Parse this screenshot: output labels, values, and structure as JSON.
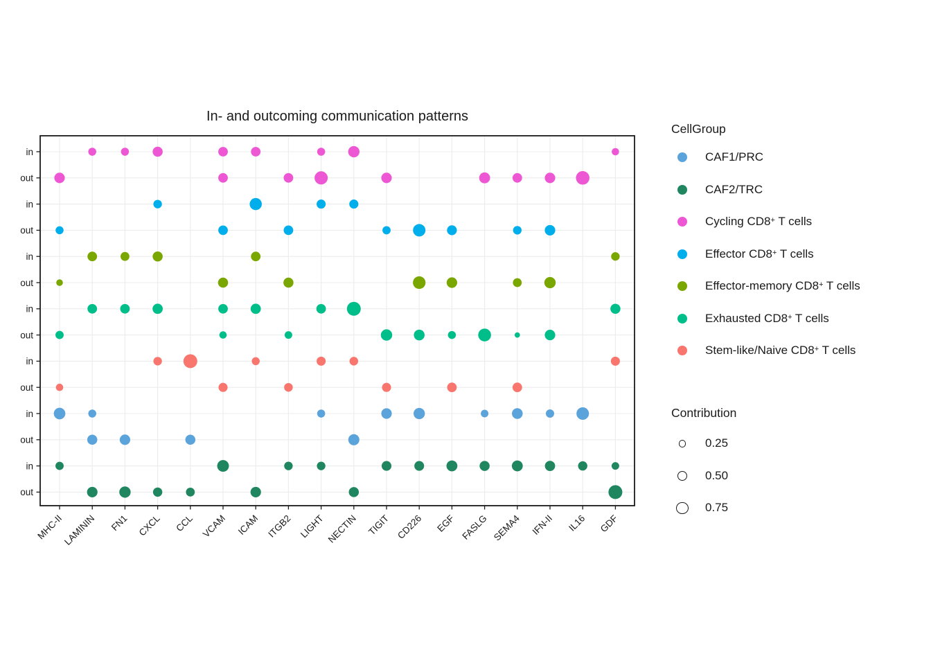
{
  "title": "In- and outcoming communication patterns",
  "legend": {
    "cellgroup_title": "CellGroup",
    "groups": [
      {
        "name": "CAF1/PRC",
        "color": "#5BA3DB",
        "label": {
          "pre": "CAF1/PRC",
          "sup": "",
          "post": ""
        }
      },
      {
        "name": "CAF2/TRC",
        "color": "#1F8660",
        "label": {
          "pre": "CAF2/TRC",
          "sup": "",
          "post": ""
        }
      },
      {
        "name": "Cycling CD8+ T cells",
        "color": "#EE57D4",
        "label": {
          "pre": "Cycling CD8",
          "sup": "+",
          "post": " T cells"
        }
      },
      {
        "name": "Effector CD8+ T cells",
        "color": "#00AEEC",
        "label": {
          "pre": "Effector CD8",
          "sup": "+",
          "post": " T cells"
        }
      },
      {
        "name": "Effector-memory CD8+ T cells",
        "color": "#7AA600",
        "label": {
          "pre": "Effector-memory CD8",
          "sup": "+",
          "post": " T cells"
        }
      },
      {
        "name": "Exhausted CD8+ T cells",
        "color": "#00BE89",
        "label": {
          "pre": "Exhausted CD8",
          "sup": "+",
          "post": " T cells"
        }
      },
      {
        "name": "Stem-like/Naive CD8+ T cells",
        "color": "#F8766D",
        "label": {
          "pre": "Stem-like/Naive CD8",
          "sup": "+",
          "post": " T cells"
        }
      }
    ],
    "contribution_title": "Contribution",
    "contribution_items": [
      {
        "value": 0.25,
        "label": "0.25"
      },
      {
        "value": 0.5,
        "label": "0.50"
      },
      {
        "value": 0.75,
        "label": "0.75"
      }
    ]
  },
  "chart_data": {
    "type": "scatter",
    "subtype": "dot-plot",
    "title": "In- and outcoming communication patterns",
    "x_categories": [
      "MHC-II",
      "LAMININ",
      "FN1",
      "CXCL",
      "CCL",
      "VCAM",
      "ICAM",
      "ITGB2",
      "LIGHT",
      "NECTIN",
      "TIGIT",
      "CD226",
      "EGF",
      "FASLG",
      "SEMA4",
      "IFN-II",
      "IL16",
      "GDF"
    ],
    "y_tick_labels": [
      "in",
      "out"
    ],
    "size_variable": "Contribution",
    "size_legend_values": [
      0.25,
      0.5,
      0.75
    ],
    "grid": true,
    "legend_position": "right",
    "rows": [
      {
        "group": "Cycling CD8+ T cells",
        "direction": "in",
        "dots": {
          "LAMININ": 0.3,
          "FN1": 0.3,
          "CXCL": 0.5,
          "VCAM": 0.45,
          "ICAM": 0.45,
          "LIGHT": 0.3,
          "NECTIN": 0.65,
          "GDF": 0.25
        }
      },
      {
        "group": "Cycling CD8+ T cells",
        "direction": "out",
        "dots": {
          "MHC-II": 0.55,
          "VCAM": 0.45,
          "ITGB2": 0.45,
          "LIGHT": 0.9,
          "TIGIT": 0.55,
          "FASLG": 0.6,
          "SEMA4": 0.45,
          "IFN-II": 0.55,
          "IL16": 0.95
        }
      },
      {
        "group": "Effector CD8+ T cells",
        "direction": "in",
        "dots": {
          "CXCL": 0.35,
          "ICAM": 0.75,
          "LIGHT": 0.4,
          "NECTIN": 0.4
        }
      },
      {
        "group": "Effector CD8+ T cells",
        "direction": "out",
        "dots": {
          "MHC-II": 0.3,
          "VCAM": 0.45,
          "ITGB2": 0.45,
          "TIGIT": 0.32,
          "CD226": 0.8,
          "EGF": 0.48,
          "SEMA4": 0.35,
          "IFN-II": 0.55
        }
      },
      {
        "group": "Effector-memory CD8+ T cells",
        "direction": "in",
        "dots": {
          "LAMININ": 0.45,
          "FN1": 0.38,
          "CXCL": 0.5,
          "ICAM": 0.45,
          "GDF": 0.35
        }
      },
      {
        "group": "Effector-memory CD8+ T cells",
        "direction": "out",
        "dots": {
          "MHC-II": 0.2,
          "VCAM": 0.5,
          "ITGB2": 0.5,
          "CD226": 0.82,
          "EGF": 0.55,
          "SEMA4": 0.38,
          "IFN-II": 0.65
        }
      },
      {
        "group": "Exhausted CD8+ T cells",
        "direction": "in",
        "dots": {
          "LAMININ": 0.45,
          "FN1": 0.45,
          "CXCL": 0.52,
          "VCAM": 0.45,
          "ICAM": 0.52,
          "LIGHT": 0.45,
          "NECTIN": 1.0,
          "GDF": 0.5
        }
      },
      {
        "group": "Exhausted CD8+ T cells",
        "direction": "out",
        "dots": {
          "MHC-II": 0.32,
          "VCAM": 0.25,
          "ITGB2": 0.27,
          "TIGIT": 0.65,
          "CD226": 0.58,
          "EGF": 0.3,
          "FASLG": 0.85,
          "SEMA4": 0.12,
          "IFN-II": 0.55
        }
      },
      {
        "group": "Stem-like/Naive CD8+ T cells",
        "direction": "in",
        "dots": {
          "CXCL": 0.35,
          "CCL": 1.0,
          "ICAM": 0.3,
          "LIGHT": 0.4,
          "NECTIN": 0.36,
          "GDF": 0.4
        }
      },
      {
        "group": "Stem-like/Naive CD8+ T cells",
        "direction": "out",
        "dots": {
          "MHC-II": 0.25,
          "VCAM": 0.4,
          "ITGB2": 0.36,
          "TIGIT": 0.4,
          "EGF": 0.45,
          "SEMA4": 0.45
        }
      },
      {
        "group": "CAF1/PRC",
        "direction": "in",
        "dots": {
          "MHC-II": 0.68,
          "LAMININ": 0.3,
          "LIGHT": 0.3,
          "TIGIT": 0.55,
          "CD226": 0.65,
          "FASLG": 0.27,
          "SEMA4": 0.58,
          "IFN-II": 0.33,
          "IL16": 0.8
        }
      },
      {
        "group": "CAF1/PRC",
        "direction": "out",
        "dots": {
          "LAMININ": 0.5,
          "FN1": 0.55,
          "CCL": 0.5,
          "NECTIN": 0.62
        }
      },
      {
        "group": "CAF2/TRC",
        "direction": "in",
        "dots": {
          "MHC-II": 0.32,
          "VCAM": 0.7,
          "ITGB2": 0.35,
          "LIGHT": 0.35,
          "TIGIT": 0.47,
          "CD226": 0.47,
          "EGF": 0.6,
          "FASLG": 0.5,
          "SEMA4": 0.6,
          "IFN-II": 0.52,
          "IL16": 0.42,
          "GDF": 0.27
        }
      },
      {
        "group": "CAF2/TRC",
        "direction": "out",
        "dots": {
          "LAMININ": 0.55,
          "FN1": 0.65,
          "CXCL": 0.42,
          "CCL": 0.38,
          "ICAM": 0.55,
          "NECTIN": 0.5,
          "GDF": 1.0
        }
      }
    ]
  }
}
